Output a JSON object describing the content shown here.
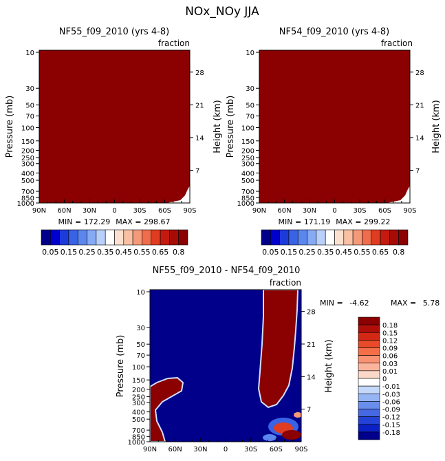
{
  "page": {
    "title": "NOx_NOy JJA"
  },
  "colors": {
    "saturated_red": "#8b0000",
    "background": "#ffffff",
    "navy": "#00008b"
  },
  "axes": {
    "pressure_label": "Pressure (mb)",
    "height_label": "Height (km)",
    "units_label": "fraction",
    "x_ticks": [
      "90N",
      "60N",
      "30N",
      "0",
      "30S",
      "60S",
      "90S"
    ],
    "pressure_ticks": [
      "10",
      "30",
      "50",
      "70",
      "100",
      "150",
      "200",
      "250",
      "300",
      "400",
      "500",
      "700",
      "850",
      "1000"
    ],
    "height_ticks": [
      "28",
      "21",
      "14",
      "7"
    ]
  },
  "chart_data": [
    {
      "type": "heatmap",
      "id": "left",
      "title": "NF55_f09_2010 (yrs 4-8)",
      "stats": {
        "min_label": "MIN = ",
        "min": "172.29",
        "max_label": "MAX = ",
        "max": "298.67"
      },
      "x": [
        "90N",
        "60N",
        "30N",
        "0",
        "30S",
        "60S",
        "90S"
      ],
      "description_values": "field saturated above 0.8 everywhere except a small white patch near 1000-700 mb at 90S"
    },
    {
      "type": "heatmap",
      "id": "right",
      "title": "NF54_f09_2010 (yrs 4-8)",
      "stats": {
        "min_label": "MIN = ",
        "min": "171.19",
        "max_label": "MAX = ",
        "max": "299.22"
      },
      "x": [
        "90N",
        "60N",
        "30N",
        "0",
        "30S",
        "60S",
        "90S"
      ]
    },
    {
      "type": "heatmap",
      "id": "diff",
      "title": "NF55_f09_2010 - NF54_f09_2010",
      "stats": {
        "min_label": "MIN = ",
        "min": "-4.62",
        "max_label": "MAX = ",
        "max": "5.78"
      },
      "x": [
        "90N",
        "60N",
        "30N",
        "0",
        "30S",
        "60S",
        "90S"
      ]
    }
  ],
  "colorbars": {
    "top": {
      "labels": [
        "0.05",
        "0.15",
        "0.25",
        "0.35",
        "0.45",
        "0.55",
        "0.65",
        "0.8"
      ],
      "colors": [
        "#00008b",
        "#0000cd",
        "#1c3bd8",
        "#3a62e4",
        "#5a86ee",
        "#86aaf4",
        "#b8d0fa",
        "#ffffff",
        "#fbe0d0",
        "#f9c0a4",
        "#f59a78",
        "#ef6d4c",
        "#e03c22",
        "#c41a10",
        "#a50c06",
        "#8b0000"
      ]
    },
    "diff": {
      "labels": [
        "0.18",
        "0.15",
        "0.12",
        "0.09",
        "0.06",
        "0.03",
        "0.01",
        "0",
        "-0.01",
        "-0.03",
        "-0.06",
        "-0.09",
        "-0.12",
        "-0.15",
        "-0.18"
      ],
      "colors": [
        "#8b0000",
        "#b00e08",
        "#d22814",
        "#e84a2a",
        "#f46e48",
        "#f89272",
        "#fab49c",
        "#fcd8c8",
        "#ffffff",
        "#c4d8fa",
        "#94b4f4",
        "#6a8eec",
        "#4668e2",
        "#2442d6",
        "#0a20c4",
        "#00008b"
      ]
    }
  }
}
